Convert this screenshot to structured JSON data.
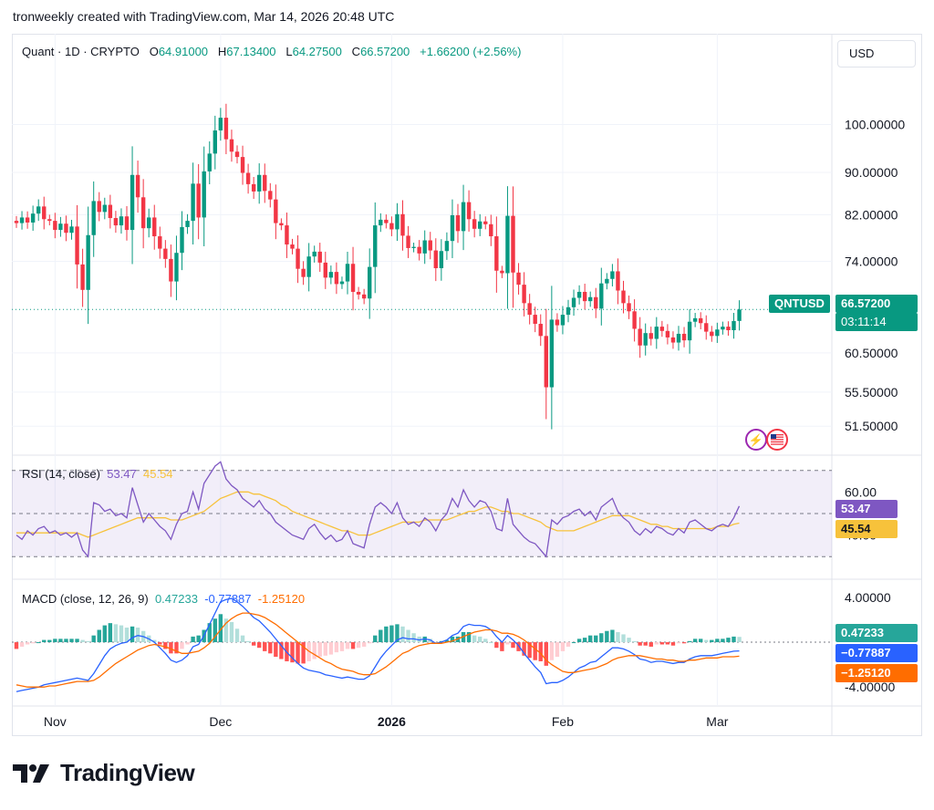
{
  "header": {
    "text": "tronweekly created with TradingView.com, Mar 14, 2026 20:48 UTC"
  },
  "currency_button": "USD",
  "legend": {
    "symbol": "Quant · 1D · CRYPTO",
    "o_label": "O",
    "o": "64.91000",
    "h_label": "H",
    "h": "67.13400",
    "l_label": "L",
    "l": "64.27500",
    "c_label": "C",
    "c": "66.57200",
    "change": "+1.66200 (+2.56%)"
  },
  "price_tag": {
    "symbol": "QNTUSD",
    "price": "66.57200",
    "countdown": "03:11:14"
  },
  "rsi": {
    "title": "RSI (14, close)",
    "value": "53.47",
    "ma": "45.54"
  },
  "macd": {
    "title": "MACD (close, 12, 26, 9)",
    "hist": "0.47233",
    "macd": "-0.77887",
    "signal": "-1.25120"
  },
  "rsi_tags": {
    "value": "53.47",
    "ma": "45.54"
  },
  "macd_tags": {
    "hist": "0.47233",
    "macd": "−0.77887",
    "signal": "−1.25120"
  },
  "brand": "TradingView",
  "colors": {
    "up": "#089981",
    "down": "#f23645",
    "rsi": "#7e57c2",
    "rsi_ma": "#f7c23b",
    "macd": "#2962ff",
    "signal": "#ff6d00"
  },
  "chart_data": [
    {
      "type": "candlestick",
      "title": "Quant · 1D · CRYPTO",
      "y_tick_labels": [
        "100.00000",
        "90.00000",
        "82.00000",
        "74.00000",
        "60.50000",
        "55.50000",
        "51.50000"
      ],
      "y_ticks": [
        100,
        90,
        82,
        74,
        60.5,
        55.5,
        51.5
      ],
      "y_scale": "log",
      "ylim": [
        49,
        112
      ],
      "x_tick_labels": [
        "Nov",
        "Dec",
        "2026",
        "Feb",
        "Mar"
      ],
      "x_tick_index": [
        7,
        37,
        68,
        99,
        127
      ],
      "grid": true,
      "last_price": 66.572,
      "close": [
        80.5,
        81.5,
        80.6,
        82.2,
        83.5,
        81.2,
        80.9,
        79.3,
        80.4,
        78.8,
        79.9,
        73.5,
        69.5,
        78.4,
        84.5,
        82.5,
        83.8,
        81.4,
        80.1,
        81.7,
        79.3,
        89.5,
        85.2,
        79.6,
        81.5,
        78.2,
        76.1,
        74.4,
        70.8,
        75.4,
        79.8,
        80.9,
        87.8,
        81.5,
        90.2,
        93.8,
        98.7,
        101.5,
        96.8,
        94.2,
        93.1,
        89.9,
        87.7,
        86.3,
        89.5,
        86.4,
        84.8,
        80.5,
        80.1,
        76.8,
        76.1,
        72.8,
        71.5,
        74.8,
        75.6,
        73.8,
        71.4,
        72.3,
        70.4,
        70.8,
        73.6,
        69.2,
        68.8,
        68.2,
        73.1,
        80.1,
        81.1,
        80.5,
        79.4,
        82.1,
        78.3,
        76.2,
        76.4,
        75.3,
        77.5,
        75.8,
        72.9,
        75.7,
        77.4,
        81.9,
        79.1,
        84.3,
        81.2,
        79.5,
        80.8,
        80.3,
        78.2,
        72.5,
        72.1,
        81.8,
        72.2,
        70.3,
        67.5,
        65.8,
        64.5,
        62.8,
        56.1,
        65.1,
        64.3,
        65.8,
        66.9,
        68.3,
        69.2,
        67.8,
        68.4,
        66.7,
        70.5,
        71.2,
        72.4,
        69.4,
        67.5,
        66.3,
        63.8,
        61.5,
        63.2,
        62.4,
        64.1,
        63.5,
        62.6,
        61.9,
        63.1,
        62.2,
        64.8,
        65.3,
        64.6,
        63.4,
        62.8,
        63.7,
        64.1,
        63.6,
        64.9,
        66.572
      ],
      "open": [
        80.9,
        80.5,
        81.5,
        80.6,
        82.2,
        83.5,
        81.2,
        80.9,
        79.3,
        80.4,
        78.8,
        79.9,
        73.5,
        69.5,
        78.4,
        84.5,
        82.5,
        83.8,
        81.4,
        80.1,
        81.7,
        79.3,
        89.5,
        85.2,
        79.6,
        81.5,
        78.2,
        76.1,
        74.4,
        70.8,
        75.4,
        79.8,
        80.9,
        87.8,
        81.5,
        90.2,
        93.8,
        98.7,
        101.5,
        96.8,
        94.2,
        93.1,
        89.9,
        87.7,
        86.3,
        89.5,
        86.4,
        84.8,
        80.5,
        80.1,
        76.8,
        76.1,
        72.8,
        71.5,
        74.8,
        75.6,
        73.8,
        71.4,
        72.3,
        70.4,
        70.8,
        73.6,
        69.2,
        68.8,
        68.2,
        73.1,
        80.1,
        81.1,
        80.5,
        79.4,
        82.1,
        78.3,
        76.2,
        76.4,
        75.3,
        77.5,
        75.8,
        72.9,
        75.7,
        77.4,
        81.9,
        79.1,
        84.3,
        81.2,
        79.5,
        80.8,
        80.3,
        78.2,
        72.5,
        72.1,
        81.8,
        72.2,
        70.3,
        67.5,
        65.8,
        64.5,
        62.8,
        56.1,
        65.1,
        64.3,
        65.8,
        66.9,
        68.3,
        69.2,
        67.8,
        68.4,
        66.7,
        70.5,
        71.2,
        72.4,
        69.4,
        67.5,
        66.3,
        63.8,
        61.5,
        63.2,
        62.4,
        64.1,
        63.5,
        62.6,
        61.9,
        63.1,
        62.2,
        64.8,
        65.3,
        64.6,
        63.4,
        62.8,
        63.7,
        64.1,
        63.6,
        64.91
      ]
    },
    {
      "type": "line",
      "title": "RSI (14, close)",
      "y_tick_labels": [
        "60.00",
        "40.00"
      ],
      "y_ticks": [
        60,
        40
      ],
      "band": [
        30,
        70
      ],
      "midline": 50,
      "series": [
        {
          "name": "RSI",
          "values": [
            40,
            38,
            42,
            40,
            43,
            44,
            41,
            42,
            40,
            41,
            39,
            41,
            33,
            30,
            55,
            54,
            51,
            52,
            49,
            50,
            48,
            62,
            54,
            46,
            50,
            47,
            44,
            42,
            38,
            45,
            50,
            51,
            60,
            52,
            64,
            68,
            72,
            74,
            66,
            63,
            61,
            57,
            55,
            53,
            56,
            52,
            50,
            46,
            44,
            42,
            40,
            39,
            38,
            43,
            45,
            41,
            38,
            40,
            37,
            38,
            42,
            36,
            35,
            34,
            45,
            53,
            55,
            53,
            50,
            55,
            48,
            45,
            46,
            44,
            48,
            46,
            42,
            47,
            50,
            57,
            53,
            61,
            56,
            53,
            56,
            55,
            51,
            43,
            42,
            57,
            45,
            42,
            39,
            37,
            36,
            33,
            30,
            47,
            45,
            48,
            49,
            51,
            52,
            49,
            51,
            47,
            53,
            55,
            57,
            51,
            48,
            46,
            42,
            40,
            43,
            41,
            44,
            43,
            41,
            40,
            43,
            41,
            46,
            47,
            45,
            43,
            42,
            44,
            45,
            44,
            48,
            53.47
          ]
        },
        {
          "name": "RSI-MA",
          "values": [
            41,
            41,
            41,
            41,
            41,
            41,
            41,
            41,
            41,
            41,
            41,
            41,
            40,
            39,
            40,
            41,
            42,
            43,
            44,
            45,
            46,
            47,
            48,
            48,
            48,
            48,
            48,
            48,
            47,
            47,
            47,
            48,
            49,
            50,
            51,
            53,
            55,
            57,
            58,
            59,
            60,
            60,
            60,
            59,
            59,
            58,
            57,
            56,
            54,
            53,
            51,
            50,
            49,
            48,
            47,
            46,
            45,
            44,
            43,
            42,
            42,
            41,
            40,
            40,
            40,
            41,
            42,
            43,
            44,
            45,
            46,
            46,
            46,
            46,
            47,
            47,
            47,
            47,
            47,
            48,
            49,
            50,
            51,
            51,
            52,
            53,
            53,
            52,
            51,
            51,
            50,
            50,
            49,
            48,
            47,
            46,
            44,
            43,
            42,
            42,
            42,
            42,
            43,
            44,
            45,
            46,
            47,
            48,
            49,
            49,
            49,
            49,
            48,
            47,
            46,
            45,
            45,
            44,
            44,
            43,
            43,
            43,
            43,
            43,
            43,
            43,
            43,
            44,
            44,
            44,
            45,
            45.54
          ]
        }
      ]
    },
    {
      "type": "bar+line",
      "title": "MACD (close, 12, 26, 9)",
      "y_tick_labels": [
        "4.00000",
        "-4.00000"
      ],
      "y_ticks": [
        4,
        -4
      ],
      "series": [
        {
          "name": "MACD",
          "values": [
            -4.4,
            -4.3,
            -4.2,
            -4.1,
            -4.0,
            -3.8,
            -3.7,
            -3.6,
            -3.5,
            -3.4,
            -3.3,
            -3.2,
            -3.3,
            -3.4,
            -2.8,
            -2.0,
            -1.2,
            -0.6,
            -0.3,
            -0.1,
            0.0,
            0.4,
            0.6,
            0.5,
            0.3,
            0.0,
            -0.5,
            -1.0,
            -1.6,
            -1.8,
            -1.6,
            -1.2,
            -0.4,
            -0.2,
            0.6,
            1.6,
            2.6,
            3.6,
            3.8,
            3.9,
            3.6,
            3.2,
            2.7,
            2.2,
            1.9,
            1.4,
            0.9,
            0.3,
            -0.3,
            -0.9,
            -1.4,
            -1.9,
            -2.3,
            -2.5,
            -2.6,
            -2.7,
            -2.9,
            -3.0,
            -3.1,
            -3.2,
            -3.1,
            -3.2,
            -3.3,
            -3.3,
            -3.0,
            -2.2,
            -1.4,
            -0.8,
            -0.3,
            0.2,
            0.4,
            0.3,
            0.3,
            0.2,
            0.3,
            0.2,
            -0.1,
            0.0,
            0.2,
            0.6,
            0.8,
            1.4,
            1.6,
            1.5,
            1.5,
            1.4,
            1.1,
            0.5,
            0.0,
            0.6,
            0.2,
            -0.3,
            -1.0,
            -1.6,
            -2.2,
            -2.7,
            -3.7,
            -3.6,
            -3.6,
            -3.4,
            -3.1,
            -2.7,
            -2.3,
            -2.1,
            -1.8,
            -1.7,
            -1.3,
            -0.9,
            -0.5,
            -0.5,
            -0.6,
            -0.8,
            -1.1,
            -1.5,
            -1.6,
            -1.8,
            -1.7,
            -1.7,
            -1.8,
            -1.9,
            -1.8,
            -1.8,
            -1.5,
            -1.3,
            -1.2,
            -1.2,
            -1.2,
            -1.1,
            -1.0,
            -0.9,
            -0.8,
            -0.78
          ]
        },
        {
          "name": "Signal",
          "values": [
            -3.8,
            -3.9,
            -4.0,
            -4.0,
            -4.0,
            -4.0,
            -3.9,
            -3.9,
            -3.8,
            -3.7,
            -3.6,
            -3.5,
            -3.5,
            -3.5,
            -3.4,
            -3.1,
            -2.7,
            -2.3,
            -1.9,
            -1.6,
            -1.3,
            -1.0,
            -0.7,
            -0.5,
            -0.3,
            -0.2,
            -0.3,
            -0.4,
            -0.6,
            -0.8,
            -1.0,
            -1.0,
            -0.9,
            -0.8,
            -0.5,
            -0.1,
            0.5,
            1.1,
            1.7,
            2.1,
            2.4,
            2.6,
            2.6,
            2.5,
            2.4,
            2.2,
            1.9,
            1.6,
            1.2,
            0.8,
            0.4,
            0.0,
            -0.4,
            -0.8,
            -1.1,
            -1.4,
            -1.7,
            -1.9,
            -2.2,
            -2.4,
            -2.5,
            -2.6,
            -2.8,
            -2.9,
            -2.9,
            -2.8,
            -2.5,
            -2.2,
            -1.8,
            -1.4,
            -1.0,
            -0.8,
            -0.5,
            -0.3,
            -0.2,
            -0.1,
            -0.1,
            -0.1,
            0.0,
            0.1,
            0.3,
            0.5,
            0.7,
            0.9,
            1.0,
            1.1,
            1.1,
            1.0,
            0.8,
            0.8,
            0.7,
            0.5,
            0.2,
            -0.2,
            -0.6,
            -1.0,
            -1.6,
            -2.0,
            -2.3,
            -2.6,
            -2.7,
            -2.7,
            -2.6,
            -2.5,
            -2.4,
            -2.3,
            -2.1,
            -1.9,
            -1.6,
            -1.4,
            -1.3,
            -1.2,
            -1.2,
            -1.2,
            -1.3,
            -1.4,
            -1.5,
            -1.5,
            -1.6,
            -1.6,
            -1.7,
            -1.7,
            -1.6,
            -1.6,
            -1.5,
            -1.4,
            -1.4,
            -1.4,
            -1.3,
            -1.3,
            -1.3,
            -1.2512
          ]
        },
        {
          "name": "Histogram",
          "values": [
            -0.6,
            -0.4,
            -0.2,
            -0.1,
            0.0,
            0.2,
            0.2,
            0.3,
            0.3,
            0.3,
            0.3,
            0.3,
            0.2,
            0.1,
            0.6,
            1.1,
            1.5,
            1.7,
            1.6,
            1.5,
            1.3,
            1.4,
            1.3,
            1.0,
            0.6,
            0.2,
            -0.2,
            -0.6,
            -1.0,
            -1.0,
            -0.6,
            -0.2,
            0.5,
            0.6,
            1.1,
            1.7,
            2.1,
            2.5,
            2.1,
            1.8,
            1.2,
            0.6,
            0.1,
            -0.3,
            -0.5,
            -0.8,
            -1.0,
            -1.3,
            -1.5,
            -1.7,
            -1.8,
            -1.9,
            -1.9,
            -1.7,
            -1.5,
            -1.3,
            -1.2,
            -1.1,
            -0.9,
            -0.8,
            -0.6,
            -0.6,
            -0.5,
            -0.4,
            -0.1,
            0.6,
            1.1,
            1.4,
            1.5,
            1.6,
            1.4,
            1.1,
            0.8,
            0.5,
            0.5,
            0.3,
            0.0,
            0.1,
            0.2,
            0.5,
            0.5,
            0.9,
            0.9,
            0.6,
            0.5,
            0.3,
            0.0,
            -0.5,
            -0.8,
            -0.2,
            -0.5,
            -0.8,
            -1.2,
            -1.4,
            -1.6,
            -1.7,
            -2.1,
            -1.6,
            -1.3,
            -0.8,
            -0.4,
            0.0,
            0.3,
            0.4,
            0.6,
            0.6,
            0.8,
            1.0,
            1.1,
            0.9,
            0.7,
            0.4,
            0.1,
            -0.3,
            -0.3,
            -0.4,
            -0.2,
            -0.2,
            -0.2,
            -0.3,
            -0.1,
            -0.1,
            0.1,
            0.3,
            0.3,
            0.2,
            0.2,
            0.3,
            0.3,
            0.4,
            0.5,
            0.47233
          ]
        }
      ]
    }
  ]
}
